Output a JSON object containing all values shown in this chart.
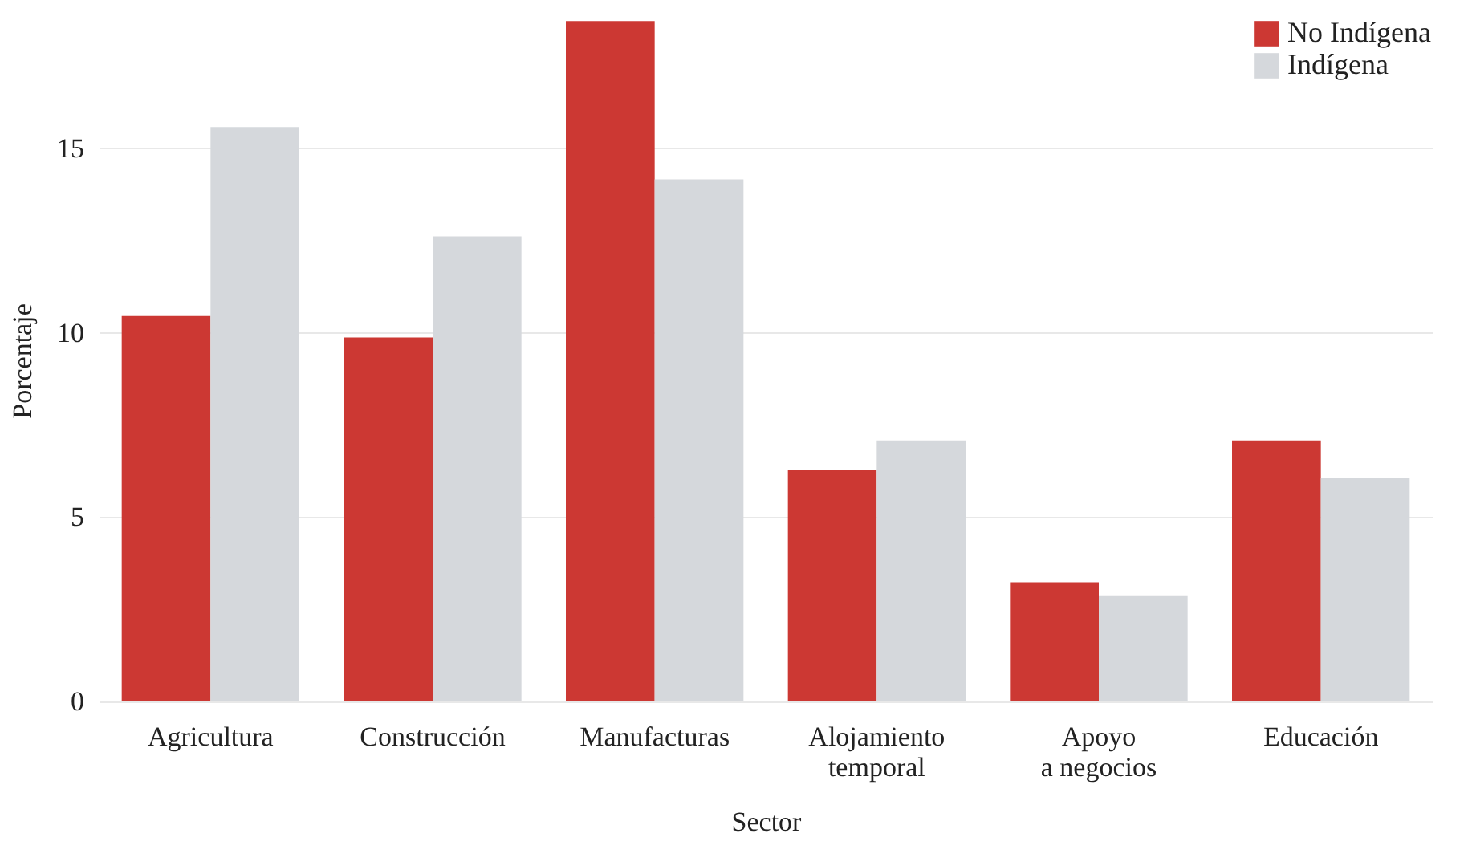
{
  "chart_data": {
    "type": "bar",
    "xlabel": "Sector",
    "ylabel": "Porcentaje",
    "categories": [
      "Agricultura",
      "Construcción",
      "Manufacturas",
      "Alojamiento\ntemporal",
      "Apoyo\na negocios",
      "Educación"
    ],
    "series": [
      {
        "name": "No Indígena",
        "color": "#cc3833",
        "values": [
          10.45,
          9.87,
          18.45,
          6.28,
          3.23,
          7.08
        ]
      },
      {
        "name": "Indígena",
        "color": "#d5d8dc",
        "values": [
          15.58,
          12.61,
          14.16,
          7.08,
          2.88,
          6.06
        ]
      }
    ],
    "ylim": [
      0,
      18.5
    ],
    "yticks": [
      0,
      5,
      10,
      15
    ],
    "grid": "y",
    "legend": "top right"
  }
}
